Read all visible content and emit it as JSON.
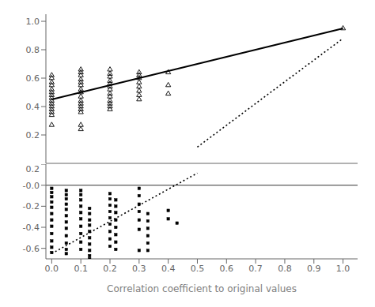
{
  "chart_data": [
    {
      "type": "scatter",
      "xlim": [
        -0.02,
        1.05
      ],
      "ylim": [
        0.0,
        1.05
      ],
      "yticks": [
        0.2,
        0.4,
        0.6,
        0.8,
        {
          "value": 1.0,
          "label": "1.0"
        }
      ],
      "tick_labels": "y",
      "series": [
        {
          "type": "scatter",
          "marker": "triangle",
          "color": "#000000",
          "x": [
            0.0,
            0.0,
            0.0,
            0.0,
            0.0,
            0.0,
            0.0,
            0.0,
            0.0,
            0.0,
            0.0,
            0.0,
            0.0,
            0.0,
            0.0,
            0.1,
            0.1,
            0.1,
            0.1,
            0.1,
            0.1,
            0.1,
            0.1,
            0.1,
            0.1,
            0.1,
            0.1,
            0.1,
            0.1,
            0.1,
            0.1,
            0.2,
            0.2,
            0.2,
            0.2,
            0.2,
            0.2,
            0.2,
            0.2,
            0.2,
            0.2,
            0.2,
            0.2,
            0.2,
            0.3,
            0.3,
            0.3,
            0.3,
            0.3,
            0.3,
            0.3,
            0.3,
            0.4,
            0.4,
            0.4,
            1.0
          ],
          "values": [
            0.62,
            0.6,
            0.57,
            0.55,
            0.52,
            0.5,
            0.48,
            0.46,
            0.44,
            0.42,
            0.4,
            0.38,
            0.36,
            0.34,
            0.27,
            0.66,
            0.64,
            0.62,
            0.59,
            0.57,
            0.55,
            0.52,
            0.5,
            0.47,
            0.44,
            0.42,
            0.4,
            0.38,
            0.36,
            0.27,
            0.24,
            0.66,
            0.63,
            0.61,
            0.58,
            0.56,
            0.54,
            0.52,
            0.49,
            0.47,
            0.44,
            0.42,
            0.4,
            0.38,
            0.64,
            0.62,
            0.6,
            0.57,
            0.54,
            0.51,
            0.48,
            0.45,
            0.64,
            0.55,
            0.49,
            0.95
          ]
        },
        {
          "type": "line",
          "line_style": "solid",
          "color": "#000000",
          "x": [
            0.0,
            1.0
          ],
          "values": [
            0.45,
            0.95
          ]
        },
        {
          "type": "line",
          "line_style": "dotted",
          "color": "#000000",
          "x": [
            0.5,
            1.0
          ],
          "values": [
            0.115,
            0.88
          ]
        }
      ]
    },
    {
      "type": "scatter",
      "xlabel": "Correlation coefficient to original values",
      "xlim": [
        -0.02,
        1.05
      ],
      "xticks": [
        {
          "value": 0.0,
          "label": "0.0"
        },
        0.1,
        0.2,
        0.3,
        0.4,
        0.5,
        0.6,
        0.7,
        0.8,
        0.9,
        {
          "value": 1.0,
          "label": "1.0"
        }
      ],
      "ylim": [
        -0.7,
        0.2
      ],
      "yticks": [
        -0.6,
        -0.4,
        -0.2,
        {
          "value": 0.0,
          "label": "-0.0"
        },
        0.2
      ],
      "hline": 0.0,
      "series": [
        {
          "type": "scatter",
          "marker": "square",
          "color": "#000000",
          "x": [
            0.0,
            0.0,
            0.0,
            0.0,
            0.0,
            0.0,
            0.0,
            0.0,
            0.0,
            0.0,
            0.0,
            0.0,
            0.05,
            0.05,
            0.05,
            0.05,
            0.05,
            0.05,
            0.05,
            0.05,
            0.05,
            0.05,
            0.05,
            0.05,
            0.1,
            0.1,
            0.1,
            0.1,
            0.1,
            0.1,
            0.1,
            0.1,
            0.1,
            0.1,
            0.13,
            0.13,
            0.13,
            0.13,
            0.13,
            0.13,
            0.13,
            0.13,
            0.13,
            0.13,
            0.2,
            0.2,
            0.2,
            0.2,
            0.2,
            0.2,
            0.2,
            0.2,
            0.2,
            0.22,
            0.22,
            0.22,
            0.22,
            0.22,
            0.22,
            0.22,
            0.22,
            0.3,
            0.3,
            0.3,
            0.3,
            0.3,
            0.3,
            0.3,
            0.33,
            0.33,
            0.33,
            0.33,
            0.33,
            0.33,
            0.4,
            0.4,
            0.43
          ],
          "values": [
            -0.03,
            -0.07,
            -0.11,
            -0.16,
            -0.21,
            -0.27,
            -0.33,
            -0.39,
            -0.46,
            -0.53,
            -0.59,
            -0.64,
            -0.05,
            -0.09,
            -0.13,
            -0.18,
            -0.23,
            -0.29,
            -0.35,
            -0.41,
            -0.48,
            -0.55,
            -0.61,
            -0.65,
            -0.05,
            -0.09,
            -0.14,
            -0.2,
            -0.26,
            -0.32,
            -0.39,
            -0.46,
            -0.54,
            -0.61,
            -0.22,
            -0.27,
            -0.33,
            -0.38,
            -0.44,
            -0.5,
            -0.56,
            -0.62,
            -0.67,
            -0.7,
            -0.08,
            -0.13,
            -0.19,
            -0.25,
            -0.31,
            -0.37,
            -0.44,
            -0.51,
            -0.58,
            -0.14,
            -0.2,
            -0.26,
            -0.33,
            -0.4,
            -0.47,
            -0.54,
            -0.61,
            -0.03,
            -0.1,
            -0.18,
            -0.25,
            -0.33,
            -0.42,
            -0.62,
            -0.27,
            -0.34,
            -0.41,
            -0.48,
            -0.55,
            -0.62,
            -0.24,
            -0.32,
            -0.36
          ]
        },
        {
          "type": "line",
          "line_style": "dotted",
          "color": "#000000",
          "x": [
            0.0,
            0.5
          ],
          "values": [
            -0.65,
            0.115
          ]
        }
      ]
    }
  ]
}
